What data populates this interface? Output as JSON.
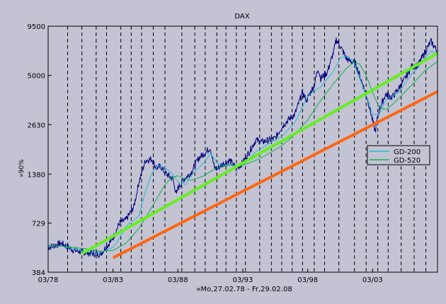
{
  "chart_data": {
    "type": "line",
    "title": "DAX",
    "xlabel": "»Mo,27.02.78 - Fr,29.02.08",
    "ylabel": "»90%",
    "y_scale": "log",
    "ylim": [
      384,
      9500
    ],
    "xlim": [
      1978.0,
      2008.0
    ],
    "y_ticks": [
      384,
      729,
      1380,
      2630,
      5000,
      9500
    ],
    "x_ticks": [
      {
        "label": "03/78",
        "x": 1978.0
      },
      {
        "label": "03/83",
        "x": 1983.0
      },
      {
        "label": "03/88",
        "x": 1988.0
      },
      {
        "label": "03/93",
        "x": 1993.0
      },
      {
        "label": "03/98",
        "x": 1998.0
      },
      {
        "label": "03/03",
        "x": 2003.0
      }
    ],
    "vertical_gridlines": [
      1979.5,
      1980.6,
      1981.7,
      1982.5,
      1983.6,
      1984.4,
      1985.2,
      1986.1,
      1987.0,
      1988.3,
      1989.3,
      1990.1,
      1991.0,
      1991.7,
      1992.5,
      1993.2,
      1994.3,
      1995.2,
      1996.0,
      1996.8,
      1997.6,
      1998.5,
      1999.3,
      2000.4,
      2001.6,
      2002.5,
      2003.4,
      2004.2,
      2005.2,
      2006.2,
      2007.1
    ],
    "legend": {
      "position": "right",
      "entries": [
        {
          "label": "GD-200",
          "color": "#20c0d0"
        },
        {
          "label": "GD-520",
          "color": "#10b050"
        }
      ]
    },
    "series": [
      {
        "name": "DAX",
        "color": "#000080",
        "width": 1,
        "noise": true,
        "x": [
          1978.0,
          1979.0,
          1980.0,
          1981.0,
          1981.5,
          1982.0,
          1982.7,
          1983.0,
          1983.5,
          1984.0,
          1984.6,
          1985.0,
          1985.5,
          1986.0,
          1986.3,
          1986.7,
          1987.0,
          1987.6,
          1987.9,
          1988.0,
          1988.5,
          1989.0,
          1989.6,
          1990.0,
          1990.5,
          1990.8,
          1991.0,
          1991.5,
          1992.0,
          1992.5,
          1993.0,
          1993.5,
          1994.0,
          1994.5,
          1995.0,
          1995.5,
          1996.0,
          1996.5,
          1997.0,
          1997.6,
          1997.9,
          1998.5,
          1998.8,
          1999.0,
          1999.5,
          2000.0,
          2000.2,
          2000.6,
          2001.0,
          2001.7,
          2002.0,
          2002.6,
          2003.2,
          2003.5,
          2004.0,
          2004.5,
          2005.0,
          2005.5,
          2006.0,
          2006.5,
          2007.0,
          2007.5,
          2008.0
        ],
        "y": [
          530,
          560,
          510,
          495,
          490,
          485,
          560,
          600,
          730,
          760,
          900,
          1250,
          1650,
          1680,
          1500,
          1520,
          1400,
          1300,
          1050,
          1150,
          1300,
          1400,
          1700,
          1800,
          1950,
          1500,
          1480,
          1580,
          1650,
          1480,
          1600,
          1850,
          2150,
          2100,
          2150,
          2200,
          2550,
          2800,
          3000,
          4000,
          3600,
          4400,
          5500,
          4800,
          5200,
          6800,
          8000,
          7100,
          6200,
          5800,
          5000,
          3700,
          2400,
          3200,
          3900,
          3750,
          4200,
          4800,
          5600,
          5700,
          6700,
          7800,
          6800
        ]
      },
      {
        "name": "GD-200",
        "color": "#20c0d0",
        "width": 1,
        "x": [
          1978.0,
          1979.0,
          1980.0,
          1981.0,
          1982.0,
          1983.0,
          1983.5,
          1984.0,
          1985.0,
          1985.5,
          1986.0,
          1986.5,
          1987.0,
          1987.5,
          1988.0,
          1988.6,
          1989.0,
          1990.0,
          1990.5,
          1991.0,
          1991.5,
          1992.0,
          1993.0,
          1994.0,
          1995.0,
          1996.0,
          1997.0,
          1997.5,
          1998.0,
          1998.5,
          1999.0,
          2000.0,
          2000.5,
          2001.0,
          2001.5,
          2002.0,
          2002.6,
          2003.0,
          2003.5,
          2004.0,
          2004.5,
          2005.0,
          2005.5,
          2006.0,
          2006.5,
          2007.0,
          2007.5,
          2008.0
        ],
        "y": [
          540,
          540,
          520,
          500,
          495,
          530,
          600,
          700,
          800,
          1100,
          1400,
          1550,
          1500,
          1400,
          1250,
          1200,
          1350,
          1600,
          1800,
          1600,
          1550,
          1550,
          1550,
          1850,
          2050,
          2250,
          2700,
          3200,
          3800,
          4100,
          4300,
          5300,
          6300,
          6400,
          6000,
          4800,
          3700,
          3000,
          3000,
          3600,
          3800,
          4000,
          4500,
          5100,
          5500,
          6200,
          6900,
          6500
        ]
      },
      {
        "name": "GD-520",
        "color": "#10b050",
        "width": 1,
        "x": [
          1978.0,
          1979.0,
          1980.0,
          1981.0,
          1982.0,
          1983.0,
          1984.0,
          1985.0,
          1986.0,
          1987.0,
          1987.5,
          1988.0,
          1988.5,
          1989.0,
          1990.0,
          1991.0,
          1992.0,
          1993.0,
          1994.0,
          1995.0,
          1996.0,
          1997.0,
          1998.0,
          1999.0,
          2000.0,
          2001.0,
          2001.5,
          2002.0,
          2002.5,
          2003.0,
          2003.5,
          2004.0,
          2004.5,
          2005.0,
          2006.0,
          2007.0,
          2008.0
        ],
        "y": [
          545,
          540,
          530,
          520,
          505,
          510,
          560,
          680,
          900,
          1200,
          1320,
          1350,
          1300,
          1270,
          1350,
          1500,
          1550,
          1550,
          1650,
          1800,
          2000,
          2300,
          2800,
          3600,
          4500,
          5500,
          5900,
          5800,
          5000,
          4000,
          3300,
          3200,
          3400,
          3700,
          4400,
          5300,
          6000
        ]
      },
      {
        "name": "Upper trend line",
        "color": "#66ee22",
        "width": 4,
        "x": [
          1980.6,
          2008.0
        ],
        "y": [
          489,
          6670
        ]
      },
      {
        "name": "Lower trend line",
        "color": "#ff6611",
        "width": 4,
        "x": [
          1983.0,
          2008.0
        ],
        "y": [
          463,
          4050
        ]
      }
    ]
  }
}
